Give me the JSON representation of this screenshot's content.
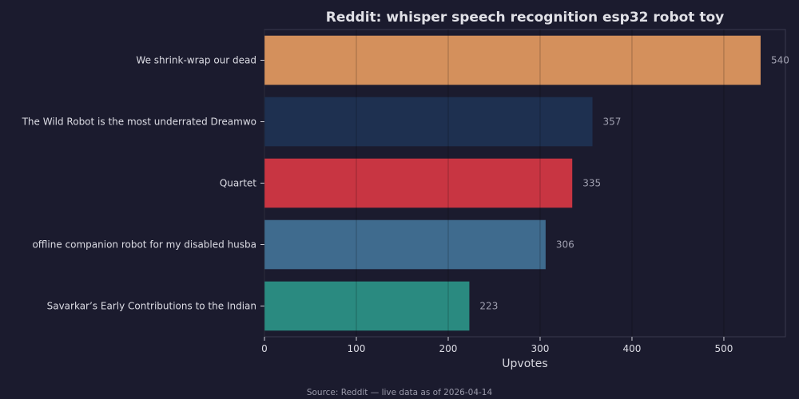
{
  "chart_data": {
    "type": "bar",
    "orientation": "horizontal",
    "title": "Reddit: whisper speech recognition esp32 robot toy",
    "xlabel": "Upvotes",
    "ylabel": "",
    "categories": [
      "We shrink-wrap our dead",
      "The Wild Robot is the most underrated Dreamwo",
      "Quartet",
      "offline companion robot for my disabled husba",
      "Savarkar’s Early Contributions to the Indian "
    ],
    "values": [
      540,
      357,
      335,
      306,
      223
    ],
    "colors": [
      "#d4905c",
      "#1e3050",
      "#c83542",
      "#3f6b8e",
      "#2a8a80"
    ],
    "xlim": [
      0,
      567
    ],
    "xticks": [
      0,
      100,
      200,
      300,
      400,
      500
    ],
    "grid": true,
    "data_labels": true
  },
  "footer": {
    "source": "Source: Reddit — live data as of 2026-04-14"
  }
}
